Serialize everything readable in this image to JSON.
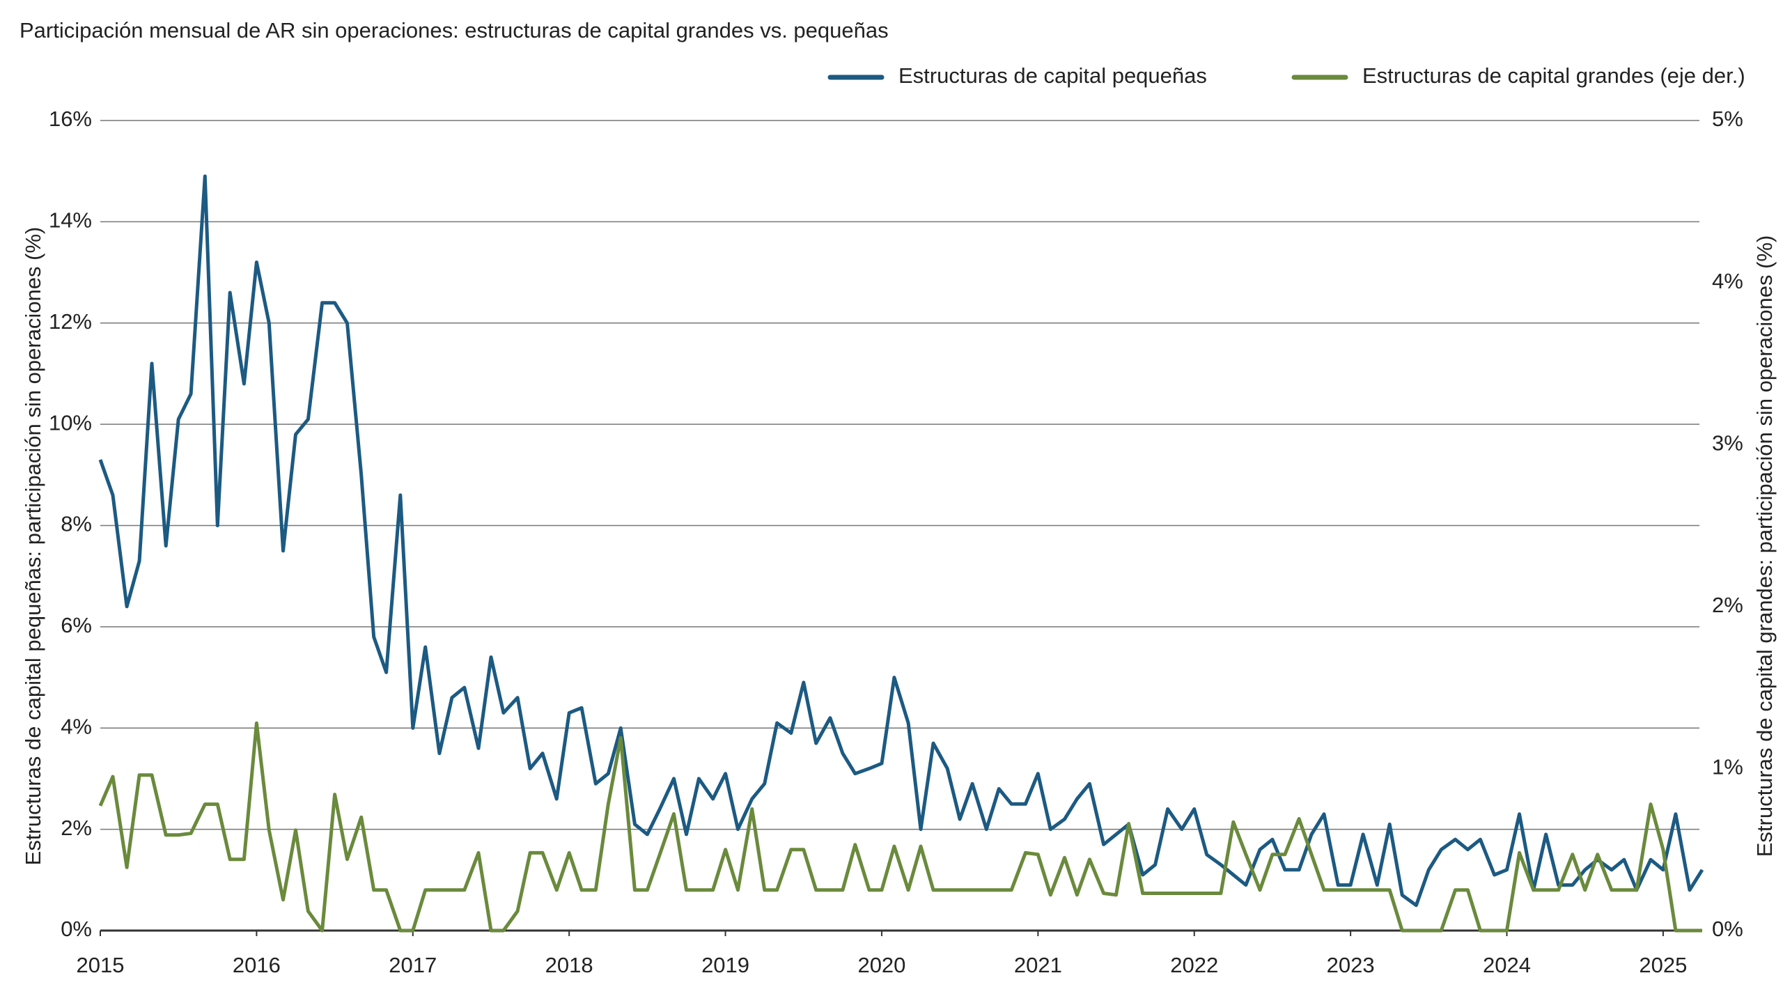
{
  "chart_data": {
    "type": "line",
    "title": "Participación mensual de AR sin operaciones: estructuras de capital grandes vs. pequeñas",
    "y_label": "Estructuras de capital pequeñas: participación sin operaciones (%)",
    "y2_label": "Estructuras de capital grandes: participación sin operaciones (%)",
    "legend": "top-right",
    "grid": true,
    "x": [
      2015,
      2015.08,
      2015.17,
      2015.25,
      2015.33,
      2015.42,
      2015.5,
      2015.58,
      2015.67,
      2015.75,
      2015.83,
      2015.92,
      2016,
      2016.08,
      2016.17,
      2016.25,
      2016.33,
      2016.42,
      2016.5,
      2016.58,
      2016.67,
      2016.75,
      2016.83,
      2016.92,
      2017,
      2017.08,
      2017.17,
      2017.25,
      2017.33,
      2017.42,
      2017.5,
      2017.58,
      2017.67,
      2017.75,
      2017.83,
      2017.92,
      2018,
      2018.08,
      2018.17,
      2018.25,
      2018.33,
      2018.42,
      2018.5,
      2018.58,
      2018.67,
      2018.75,
      2018.83,
      2018.92,
      2019,
      2019.08,
      2019.17,
      2019.25,
      2019.33,
      2019.42,
      2019.5,
      2019.58,
      2019.67,
      2019.75,
      2019.83,
      2019.92,
      2020,
      2020.08,
      2020.17,
      2020.25,
      2020.33,
      2020.42,
      2020.5,
      2020.58,
      2020.67,
      2020.75,
      2020.83,
      2020.92,
      2021,
      2021.08,
      2021.17,
      2021.25,
      2021.33,
      2021.42,
      2021.5,
      2021.58,
      2021.67,
      2021.75,
      2021.83,
      2021.92,
      2022,
      2022.08,
      2022.17,
      2022.25,
      2022.33,
      2022.42,
      2022.5,
      2022.58,
      2022.67,
      2022.75,
      2022.83,
      2022.92,
      2023,
      2023.08,
      2023.17,
      2023.25,
      2023.33,
      2023.42,
      2023.5,
      2023.58,
      2023.67,
      2023.75,
      2023.83,
      2023.92,
      2024,
      2024.08,
      2024.17,
      2024.25,
      2024.33,
      2024.42,
      2024.5,
      2024.58,
      2024.67,
      2024.75,
      2024.83,
      2024.92,
      2025,
      2025.08,
      2025.17,
      2025.25
    ],
    "xlim": [
      2015,
      2025.25
    ],
    "xticks": [
      2015,
      2016,
      2017,
      2018,
      2019,
      2020,
      2021,
      2022,
      2023,
      2024,
      2025
    ],
    "ylim": [
      0,
      16
    ],
    "yticks": [
      {
        "value": 0,
        "label": "0%"
      },
      {
        "value": 2,
        "label": "2%"
      },
      {
        "value": 4,
        "label": "4%"
      },
      {
        "value": 6,
        "label": "6%"
      },
      {
        "value": 8,
        "label": "8%"
      },
      {
        "value": 10,
        "label": "10%"
      },
      {
        "value": 12,
        "label": "12%"
      },
      {
        "value": 14,
        "label": "14%"
      },
      {
        "value": 16,
        "label": "16%"
      }
    ],
    "y2lim": [
      0,
      5
    ],
    "y2ticks": [
      {
        "value": 0,
        "label": "0%"
      },
      {
        "value": 1,
        "label": "1%"
      },
      {
        "value": 2,
        "label": "2%"
      },
      {
        "value": 3,
        "label": "3%"
      },
      {
        "value": 4,
        "label": "4%"
      },
      {
        "value": 5,
        "label": "5%"
      }
    ],
    "series": [
      {
        "name": "Estructuras de capital pequeñas",
        "color": "#1c5a82",
        "axis": "y",
        "values": [
          9.3,
          8.6,
          6.4,
          7.3,
          11.2,
          7.6,
          10.1,
          10.6,
          14.9,
          8.0,
          12.6,
          10.8,
          13.2,
          12.0,
          7.5,
          9.8,
          10.1,
          12.4,
          12.4,
          12.0,
          9.0,
          5.8,
          5.1,
          8.6,
          4.0,
          5.6,
          3.5,
          4.6,
          4.8,
          3.6,
          5.4,
          4.3,
          4.6,
          3.2,
          3.5,
          2.6,
          4.3,
          4.4,
          2.9,
          3.1,
          4.0,
          2.1,
          1.9,
          2.4,
          3.0,
          1.9,
          3.0,
          2.6,
          3.1,
          2.0,
          2.6,
          2.9,
          4.1,
          3.9,
          4.9,
          3.7,
          4.2,
          3.5,
          3.1,
          3.2,
          3.3,
          5.0,
          4.1,
          2.0,
          3.7,
          3.2,
          2.2,
          2.9,
          2.0,
          2.8,
          2.5,
          2.5,
          3.1,
          2.0,
          2.2,
          2.6,
          2.9,
          1.7,
          1.9,
          2.1,
          1.1,
          1.3,
          2.4,
          2.0,
          2.4,
          1.5,
          1.3,
          1.1,
          0.9,
          1.6,
          1.8,
          1.2,
          1.2,
          1.9,
          2.3,
          0.9,
          0.9,
          1.9,
          0.9,
          2.1,
          0.7,
          0.5,
          1.2,
          1.6,
          1.8,
          1.6,
          1.8,
          1.1,
          1.2,
          2.3,
          0.8,
          1.9,
          0.9,
          0.9,
          1.2,
          1.4,
          1.2,
          1.4,
          0.8,
          1.4,
          1.2,
          2.3,
          0.8,
          1.2
        ]
      },
      {
        "name": "Estructuras de capital grandes (eje der.)",
        "color": "#6a8a3c",
        "axis": "y2",
        "values": [
          0.77,
          0.95,
          0.39,
          0.96,
          0.96,
          0.59,
          0.59,
          0.6,
          0.78,
          0.78,
          0.44,
          0.44,
          1.28,
          0.62,
          0.19,
          0.62,
          0.12,
          0,
          0.84,
          0.44,
          0.7,
          0.25,
          0.25,
          0,
          0,
          0.25,
          0.25,
          0.25,
          0.25,
          0.48,
          0,
          0,
          0.12,
          0.48,
          0.48,
          0.25,
          0.48,
          0.25,
          0.25,
          0.78,
          1.19,
          0.25,
          0.25,
          0.47,
          0.72,
          0.25,
          0.25,
          0.25,
          0.5,
          0.25,
          0.75,
          0.25,
          0.25,
          0.5,
          0.5,
          0.25,
          0.25,
          0.25,
          0.53,
          0.25,
          0.25,
          0.52,
          0.25,
          0.52,
          0.25,
          0.25,
          0.25,
          0.25,
          0.25,
          0.25,
          0.25,
          0.48,
          0.47,
          0.22,
          0.45,
          0.22,
          0.44,
          0.23,
          0.22,
          0.66,
          0.23,
          0.23,
          0.23,
          0.23,
          0.23,
          0.23,
          0.23,
          0.67,
          0.47,
          0.25,
          0.47,
          0.47,
          0.69,
          0.47,
          0.25,
          0.25,
          0.25,
          0.25,
          0.25,
          0.25,
          0,
          0,
          0,
          0,
          0.25,
          0.25,
          0,
          0,
          0,
          0.48,
          0.25,
          0.25,
          0.25,
          0.47,
          0.25,
          0.47,
          0.25,
          0.25,
          0.25,
          0.78,
          0.5,
          0,
          0,
          0
        ]
      }
    ]
  }
}
